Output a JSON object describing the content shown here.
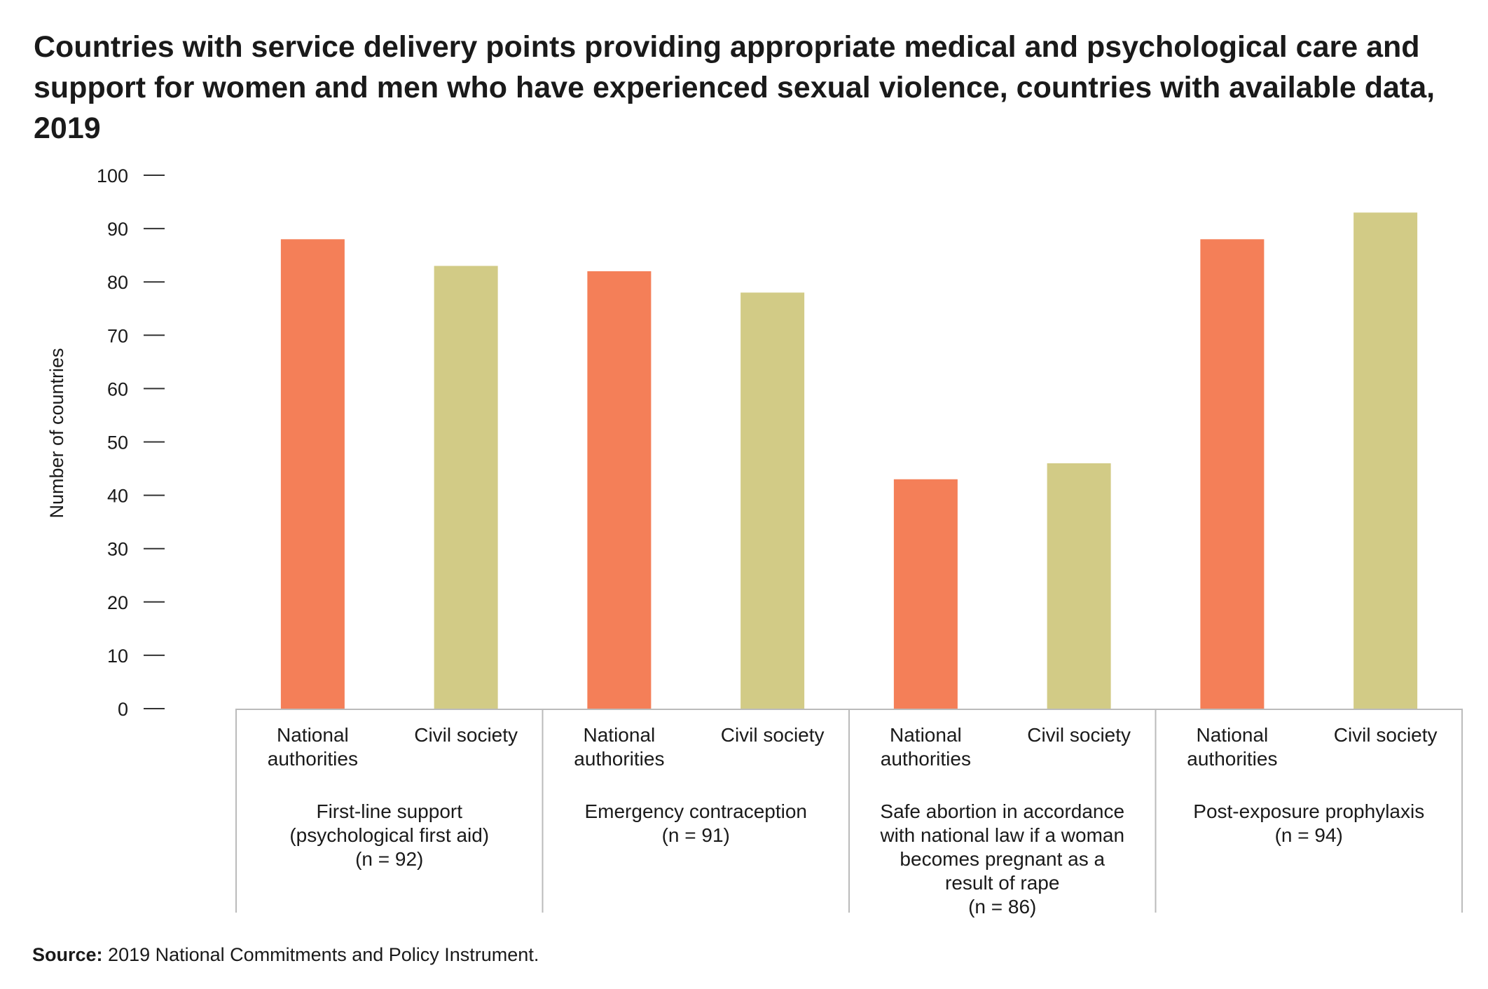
{
  "title": "Countries with service delivery points providing appropriate medical and psychological care and support for women and men who have experienced sexual violence, countries with available data, 2019",
  "source_label": "Source:",
  "source_text": "2019 National Commitments and Policy Instrument.",
  "colors": {
    "national": "#F47F58",
    "civil": "#D2CB86",
    "axis": "#333333",
    "grid": "#bbbbbb"
  },
  "chart_data": {
    "type": "bar",
    "title": "Countries with service delivery points providing appropriate medical and psychological care and support for women and men who have experienced sexual violence, countries with available data, 2019",
    "ylabel": "Number of countries",
    "xlabel": "",
    "ylim": [
      0,
      100
    ],
    "yticks": [
      0,
      10,
      20,
      30,
      40,
      50,
      60,
      70,
      80,
      90,
      100
    ],
    "grid": false,
    "groups": [
      {
        "label_lines": [
          "First-line support",
          "(psychological first aid)",
          "(n = 92)"
        ]
      },
      {
        "label_lines": [
          "Emergency contraception",
          "(n = 91)"
        ]
      },
      {
        "label_lines": [
          "Safe abortion in accordance",
          "with national law if a woman",
          "becomes pregnant as a",
          "result of rape",
          "(n = 86)"
        ]
      },
      {
        "label_lines": [
          "Post-exposure prophylaxis",
          "(n = 94)"
        ]
      }
    ],
    "bar_label_lines": [
      [
        "National",
        "authorities"
      ],
      [
        "Civil society"
      ]
    ],
    "series": [
      {
        "key": "national",
        "values": [
          88,
          82,
          43,
          88
        ]
      },
      {
        "key": "civil",
        "values": [
          83,
          78,
          46,
          93
        ]
      }
    ]
  }
}
